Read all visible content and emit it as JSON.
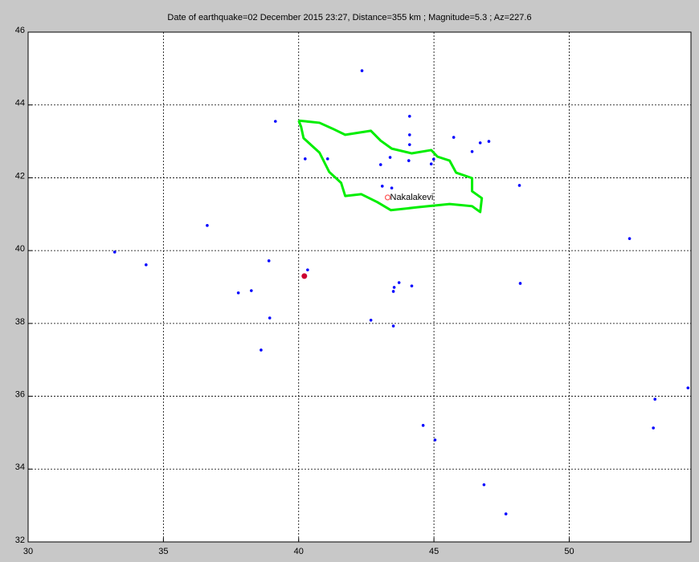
{
  "chart_data": {
    "type": "scatter",
    "title": "Date of earthquake=02 December 2015 23:27, Distance=355 km ; Magnitude=5.3 ; Az=227.6",
    "xlim": [
      30,
      54.5
    ],
    "ylim": [
      32,
      46
    ],
    "xticks": [
      30,
      35,
      40,
      45,
      50
    ],
    "yticks": [
      32,
      34,
      36,
      38,
      40,
      42,
      44,
      46
    ],
    "grid": true,
    "series": [
      {
        "type": "scatter",
        "color": "#0000ff",
        "x": [
          42.34,
          39.14,
          44.1,
          44.1,
          44.1,
          45.73,
          46.71,
          47.03,
          46.41,
          43.38,
          43.03,
          44.07,
          44.9,
          44.99,
          40.24,
          41.07,
          43.09,
          43.44,
          48.16,
          36.62,
          52.23,
          33.2,
          34.36,
          38.9,
          40.33,
          37.77,
          38.25,
          43.71,
          43.53,
          43.5,
          44.18,
          48.19,
          38.93,
          42.67,
          43.5,
          38.61,
          54.39,
          53.17,
          44.6,
          45.04,
          53.11,
          46.85,
          47.66
        ],
        "y": [
          44.94,
          43.55,
          43.69,
          43.18,
          42.91,
          43.11,
          42.96,
          43.0,
          42.72,
          42.56,
          42.36,
          42.47,
          42.38,
          42.51,
          42.52,
          42.52,
          41.77,
          41.72,
          41.79,
          40.69,
          40.33,
          39.96,
          39.61,
          39.72,
          39.47,
          38.84,
          38.9,
          39.12,
          38.99,
          38.88,
          39.03,
          39.1,
          38.15,
          38.09,
          37.93,
          37.27,
          36.23,
          35.92,
          35.2,
          34.8,
          35.13,
          33.57,
          32.77
        ]
      },
      {
        "type": "scatter",
        "color": "#cc0033",
        "x": [
          40.21
        ],
        "y": [
          39.3
        ]
      },
      {
        "type": "line",
        "color": "#00ee00",
        "x": [
          40.0,
          40.77,
          41.25,
          41.72,
          42.67,
          43.03,
          43.44,
          44.18,
          44.9,
          45.13,
          45.58,
          45.82,
          46.41,
          46.41,
          46.77,
          46.71,
          46.41,
          45.58,
          44.39,
          43.41,
          42.91,
          42.31,
          41.72,
          41.57,
          41.13,
          40.77,
          40.18,
          40.09,
          40.0
        ],
        "y": [
          43.57,
          43.51,
          43.35,
          43.18,
          43.29,
          43.02,
          42.8,
          42.67,
          42.76,
          42.58,
          42.47,
          42.14,
          41.99,
          41.63,
          41.44,
          41.06,
          41.22,
          41.28,
          41.19,
          41.11,
          41.33,
          41.55,
          41.5,
          41.86,
          42.16,
          42.69,
          43.09,
          43.4,
          43.57
        ]
      }
    ],
    "annotations": [
      {
        "text": "Nakalakevi",
        "x": 43.29,
        "y": 41.46,
        "color": "#ff5555"
      }
    ]
  }
}
